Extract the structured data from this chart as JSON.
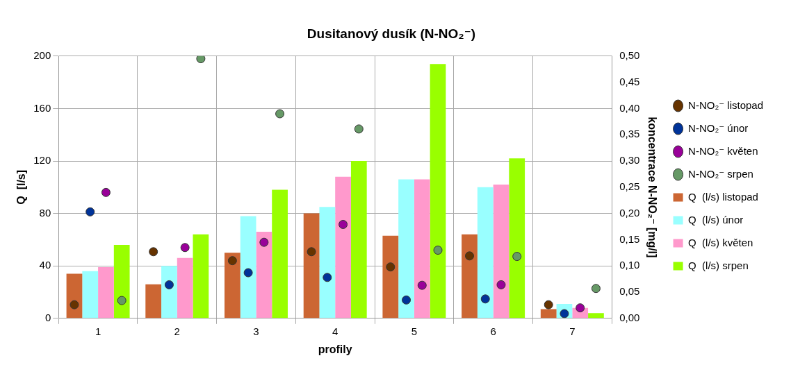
{
  "chart_data": {
    "type": "bar",
    "title": "Dusitanový dusík (N-NO₂⁻)",
    "xlabel": "profily",
    "ylabel": "Q  [l/s]",
    "y2label": "koncentrace N-NO₂⁻ [mg/l]",
    "categories": [
      "1",
      "2",
      "3",
      "4",
      "5",
      "6",
      "7"
    ],
    "series": [
      {
        "name": "Q  (l/s) listopad",
        "color": "#cc6633",
        "values": [
          34,
          26,
          50,
          80,
          63,
          64,
          7
        ]
      },
      {
        "name": "Q  (l/s) únor",
        "color": "#99ffff",
        "values": [
          36,
          40,
          78,
          85,
          106,
          100,
          11
        ]
      },
      {
        "name": "Q  (l/s) květen",
        "color": "#ff99cc",
        "values": [
          39,
          46,
          66,
          108,
          106,
          102,
          8
        ]
      },
      {
        "name": "Q  (l/s) srpen",
        "color": "#99ff00",
        "values": [
          56,
          64,
          98,
          120,
          194,
          122,
          4
        ]
      },
      {
        "name": "N-NO₂⁻ listopad",
        "type": "scatter",
        "axis": "y2",
        "color": "#663300",
        "x": [
          "1",
          "2",
          "3",
          "4",
          "5",
          "6",
          "7"
        ],
        "values": [
          0.026,
          0.127,
          0.11,
          0.127,
          0.098,
          0.119,
          0.026
        ]
      },
      {
        "name": "N-NO₂⁻ únor",
        "type": "scatter",
        "axis": "y2",
        "color": "#003399",
        "x": [
          "1",
          "2",
          "3",
          "4",
          "5",
          "6",
          "7"
        ],
        "values": [
          0.203,
          0.064,
          0.087,
          0.078,
          0.035,
          0.037,
          0.009
        ]
      },
      {
        "name": "N-NO₂⁻ květen",
        "type": "scatter",
        "axis": "y2",
        "color": "#990099",
        "x": [
          "1",
          "2",
          "3",
          "4",
          "5",
          "6",
          "7"
        ],
        "values": [
          0.24,
          0.135,
          0.145,
          0.179,
          0.063,
          0.064,
          0.02
        ]
      },
      {
        "name": "N-NO₂⁻ srpen",
        "type": "scatter",
        "axis": "y2",
        "color": "#669966",
        "x": [
          "1",
          "2",
          "3",
          "4",
          "5",
          "6",
          "7"
        ],
        "values": [
          0.034,
          0.495,
          0.39,
          0.361,
          0.13,
          0.118,
          0.057
        ]
      }
    ],
    "ylim": [
      0,
      200
    ],
    "yticks": [
      0,
      40,
      80,
      120,
      160,
      200
    ],
    "y2lim": [
      0,
      0.5
    ],
    "y2ticks": [
      {
        "value": 0,
        "label": "0,00"
      },
      {
        "value": 0.05,
        "label": "0,05"
      },
      {
        "value": 0.1,
        "label": "0,10"
      },
      {
        "value": 0.15,
        "label": "0,15"
      },
      {
        "value": 0.2,
        "label": "0,20"
      },
      {
        "value": 0.25,
        "label": "0,25"
      },
      {
        "value": 0.3,
        "label": "0,30"
      },
      {
        "value": 0.35,
        "label": "0,35"
      },
      {
        "value": 0.4,
        "label": "0,40"
      },
      {
        "value": 0.45,
        "label": "0,45"
      },
      {
        "value": 0.5,
        "label": "0,50"
      }
    ],
    "grid": true,
    "legend": "right",
    "marker": "circle"
  }
}
